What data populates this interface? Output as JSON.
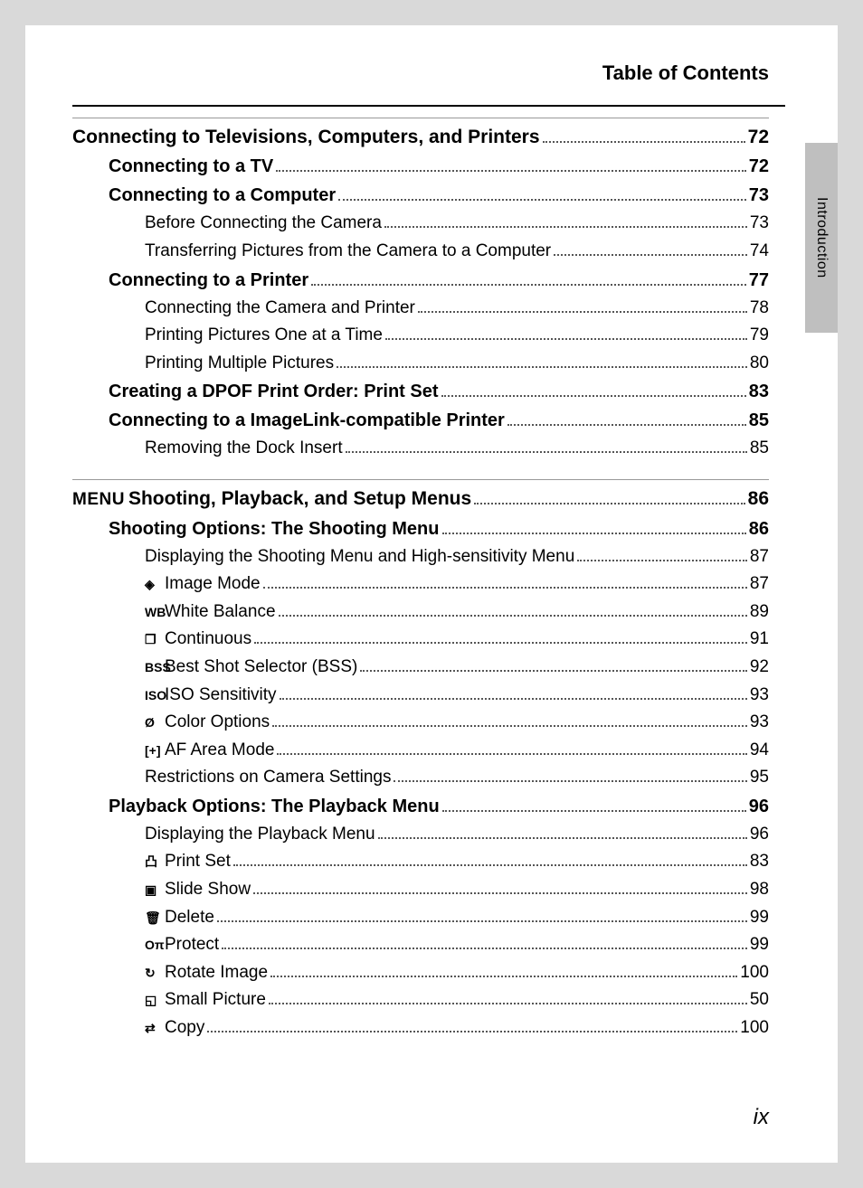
{
  "header": {
    "title": "Table of Contents"
  },
  "sideTab": {
    "label": "Introduction"
  },
  "pageNumber": "ix",
  "sections": [
    {
      "rule": true,
      "items": [
        {
          "level": 0,
          "title": "Connecting to Televisions, Computers, and Printers",
          "page": "72"
        },
        {
          "level": 1,
          "title": "Connecting to a TV",
          "page": "72"
        },
        {
          "level": 1,
          "title": "Connecting to a Computer",
          "page": "73"
        },
        {
          "level": 2,
          "title": "Before Connecting the Camera",
          "page": "73"
        },
        {
          "level": 2,
          "title": "Transferring Pictures from the Camera to a Computer",
          "page": "74"
        },
        {
          "level": 1,
          "title": "Connecting to a Printer",
          "page": "77"
        },
        {
          "level": 2,
          "title": "Connecting the Camera and Printer",
          "page": "78"
        },
        {
          "level": 2,
          "title": "Printing Pictures One at a Time",
          "page": "79"
        },
        {
          "level": 2,
          "title": "Printing Multiple Pictures",
          "page": "80"
        },
        {
          "level": 1,
          "title": "Creating a DPOF Print Order: Print Set",
          "page": "83"
        },
        {
          "level": 1,
          "title": "Connecting to a ImageLink-compatible Printer",
          "page": "85"
        },
        {
          "level": 2,
          "title": "Removing the Dock Insert",
          "page": "85"
        }
      ]
    },
    {
      "rule": true,
      "items": [
        {
          "level": 0,
          "iconGlyph": "MENU",
          "iconClass": "menu-glyph",
          "title": "Shooting, Playback, and Setup Menus",
          "page": "86"
        },
        {
          "level": 1,
          "title": "Shooting Options: The Shooting Menu",
          "page": "86"
        },
        {
          "level": 2,
          "title": "Displaying the Shooting Menu and High-sensitivity Menu",
          "page": "87"
        },
        {
          "level": 2,
          "iconGlyph": "◈",
          "title": "Image Mode",
          "page": "87"
        },
        {
          "level": 2,
          "iconGlyph": "WB",
          "title": "White Balance",
          "page": "89"
        },
        {
          "level": 2,
          "iconGlyph": "❐",
          "title": "Continuous",
          "page": "91"
        },
        {
          "level": 2,
          "iconGlyph": "BSS",
          "title": "Best Shot Selector (BSS)",
          "page": "92"
        },
        {
          "level": 2,
          "iconGlyph": "ISO",
          "title": "ISO Sensitivity",
          "page": "93"
        },
        {
          "level": 2,
          "iconGlyph": "Ø",
          "title": "Color Options",
          "page": "93"
        },
        {
          "level": 2,
          "iconGlyph": "[+]",
          "title": "AF Area Mode",
          "page": "94"
        },
        {
          "level": 2,
          "title": "Restrictions on Camera Settings",
          "page": "95"
        },
        {
          "level": 1,
          "title": "Playback Options: The Playback Menu",
          "page": "96"
        },
        {
          "level": 2,
          "title": "Displaying the Playback Menu",
          "page": "96"
        },
        {
          "level": 2,
          "iconGlyph": "凸",
          "title": "Print Set",
          "page": "83"
        },
        {
          "level": 2,
          "iconGlyph": "▣",
          "title": "Slide Show",
          "page": "98"
        },
        {
          "level": 2,
          "iconGlyph": "🗑",
          "title": "Delete",
          "page": "99"
        },
        {
          "level": 2,
          "iconGlyph": "Oπ",
          "title": "Protect",
          "page": "99"
        },
        {
          "level": 2,
          "iconGlyph": "↻",
          "title": "Rotate Image",
          "page": "100"
        },
        {
          "level": 2,
          "iconGlyph": "◱",
          "title": "Small Picture",
          "page": "50"
        },
        {
          "level": 2,
          "iconGlyph": "⇄",
          "title": "Copy",
          "page": "100"
        }
      ]
    }
  ]
}
